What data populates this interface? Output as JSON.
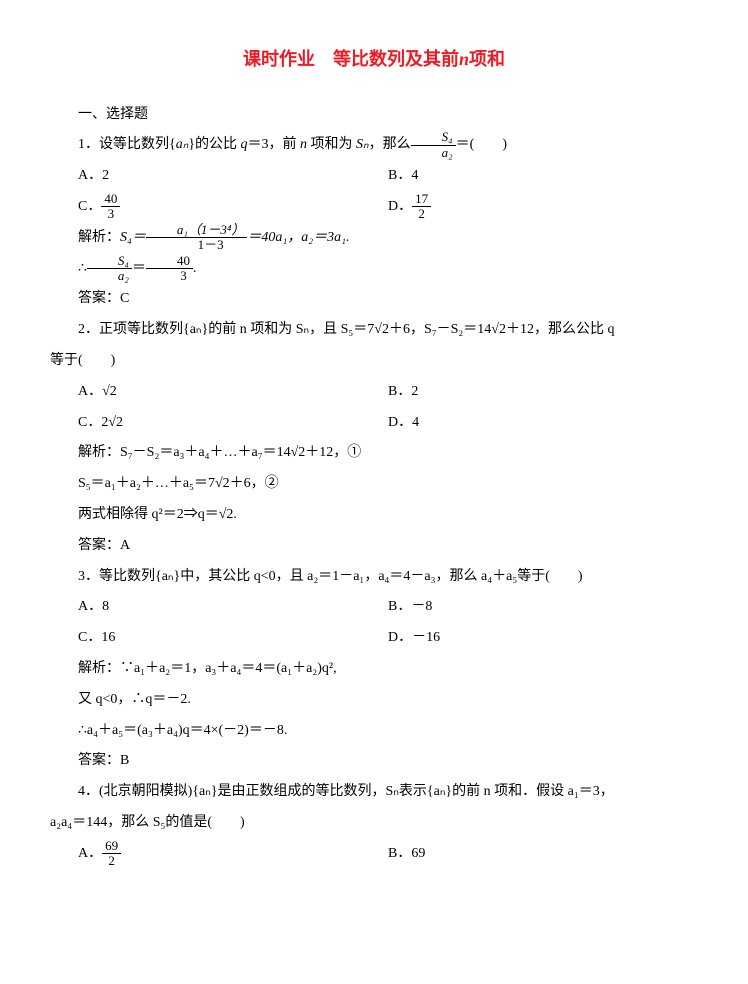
{
  "title_prefix": "课时作业　等比数列及其前",
  "title_n": "n",
  "title_suffix": "项和",
  "section1": "一、选择题",
  "q1": {
    "stem_pre": "1．设等比数列{",
    "stem_seq": "aₙ",
    "stem_mid": "}的公比 ",
    "stem_q": "q",
    "stem_eq": "＝3，前 ",
    "stem_n": "n",
    "stem_sum": " 项和为 ",
    "stem_Sn": "Sₙ",
    "stem_then": "，那么",
    "frac_num": "S₄",
    "frac_den": "a₂",
    "stem_end": "＝(　　)",
    "optA": "A．2",
    "optB": "B．4",
    "optC_pre": "C．",
    "optC_num": "40",
    "optC_den": "3",
    "optD_pre": "D．",
    "optD_num": "17",
    "optD_den": "2",
    "sol_label": "解析：",
    "sol_s4": "S₄＝",
    "sol_frac1_num": "a₁（1－3⁴）",
    "sol_frac1_den": "1－3",
    "sol_mid": "＝40a₁，a₂＝3a₁.",
    "sol2_pre": "∴",
    "sol2_num": "S₄",
    "sol2_den": "a₂",
    "sol2_eq": "＝",
    "sol2_num2": "40",
    "sol2_den2": "3",
    "sol2_end": ".",
    "ans": "答案：C"
  },
  "q2": {
    "stem": "2．正项等比数列{aₙ}的前 n 项和为 Sₙ，且 S₅＝7√2＋6，S₇－S₂＝14√2＋12，那么公比 q",
    "stem2": "等于(　　)",
    "optA": "A．√2",
    "optB": "B．2",
    "optC": "C．2√2",
    "optD": "D．4",
    "sol_label": "解析：",
    "sol1": "S₇－S₂＝a₃＋a₄＋…＋a₇＝14√2＋12，①",
    "sol2": "S₅＝a₁＋a₂＋…＋a₅＝7√2＋6，②",
    "sol3": "两式相除得 q²＝2⇒q＝√2.",
    "ans": "答案：A"
  },
  "q3": {
    "stem": "3．等比数列{aₙ}中，其公比 q<0，且 a₂＝1－a₁，a₄＝4－a₃，那么 a₄＋a₅等于(　　)",
    "optA": "A．8",
    "optB": "B．－8",
    "optC": "C．16",
    "optD": "D．－16",
    "sol_label": "解析：",
    "sol1": "∵a₁＋a₂＝1，a₃＋a₄＝4＝(a₁＋a₂)q²,",
    "sol2": "又 q<0，∴q＝－2.",
    "sol3": "∴a₄＋a₅＝(a₃＋a₄)q＝4×(－2)＝－8.",
    "ans": "答案：B"
  },
  "q4": {
    "stem": "4．(北京朝阳模拟){aₙ}是由正数组成的等比数列，Sₙ表示{aₙ}的前 n 项和．假设 a₁＝3，",
    "stem2": "a₂a₄＝144，那么 S₅的值是(　　)",
    "optA_pre": "A．",
    "optA_num": "69",
    "optA_den": "2",
    "optB": "B．69"
  }
}
